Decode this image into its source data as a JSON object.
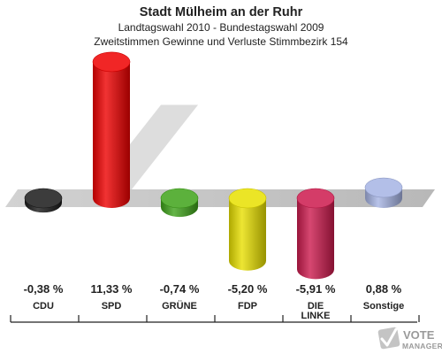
{
  "header": {
    "title": "Stadt Mülheim an der Ruhr",
    "subtitle1": "Landtagswahl 2010 - Bundestagswahl 2009",
    "subtitle2": "Zweitstimmen Gewinne und Verluste Stimmbezirk 154"
  },
  "logo": {
    "line1": "VOTE",
    "line2": "MANAGER",
    "icon": "checkmark-x-icon"
  },
  "chart_data": {
    "type": "bar",
    "title": "Stadt Mülheim an der Ruhr",
    "subtitle": "Landtagswahl 2010 - Bundestagswahl 2009 / Zweitstimmen Gewinne und Verluste Stimmbezirk 154",
    "xlabel": "",
    "ylabel": "",
    "grid": false,
    "legend": "none",
    "categories": [
      "CDU",
      "SPD",
      "GRÜNE",
      "FDP",
      "DIE LINKE",
      "Sonstige"
    ],
    "category_lines": [
      [
        "CDU"
      ],
      [
        "SPD"
      ],
      [
        "GRÜNE"
      ],
      [
        "FDP"
      ],
      [
        "DIE",
        "LINKE"
      ],
      [
        "Sonstige"
      ]
    ],
    "values": [
      -0.38,
      11.33,
      -0.74,
      -5.2,
      -5.91,
      0.88
    ],
    "value_labels": [
      "-0,38 %",
      "11,33 %",
      "-0,74 %",
      "-5,20 %",
      "-5,91 %",
      "0,88 %"
    ],
    "colors": [
      "#1a1a1a",
      "#ee0000",
      "#3fa31a",
      "#e8e000",
      "#cc1a4d",
      "#a6b4e4"
    ]
  }
}
